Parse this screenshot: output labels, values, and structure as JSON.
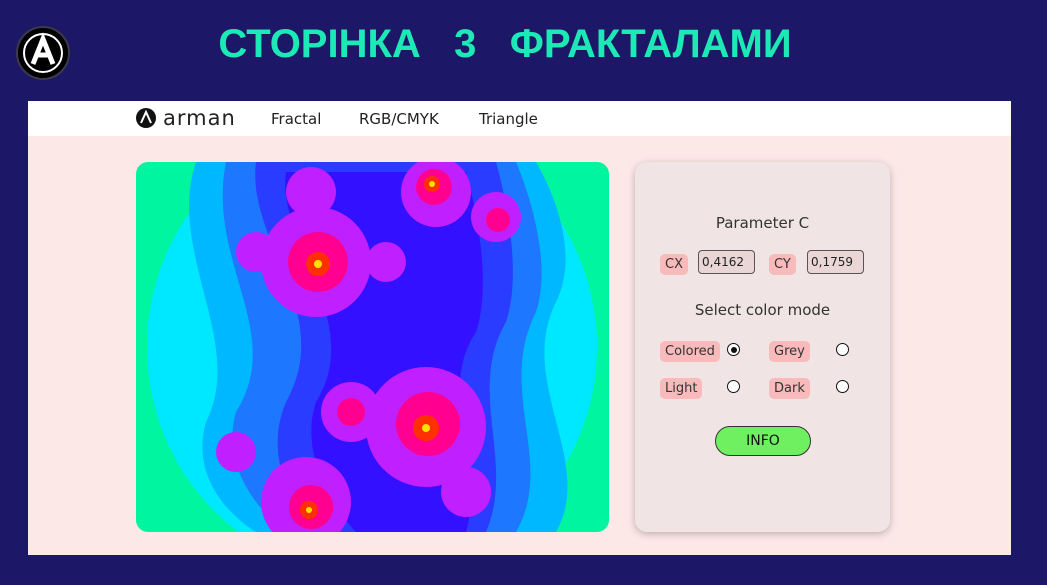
{
  "slide_title": "СТОРІНКА   3   ФРАКТАЛАМИ",
  "nav": {
    "brand": "arman",
    "links": [
      "Fractal",
      "RGB/CMYK",
      "Triangle"
    ]
  },
  "panel": {
    "heading": "Parameter C",
    "cx": {
      "label": "CX",
      "value": "0,4162"
    },
    "cy": {
      "label": "CY",
      "value": "0,1759"
    },
    "color_heading": "Select color mode",
    "options": [
      {
        "label": "Colored",
        "checked": true
      },
      {
        "label": "Grey",
        "checked": false
      },
      {
        "label": "Light",
        "checked": false
      },
      {
        "label": "Dark",
        "checked": false
      }
    ],
    "button": "INFO"
  }
}
